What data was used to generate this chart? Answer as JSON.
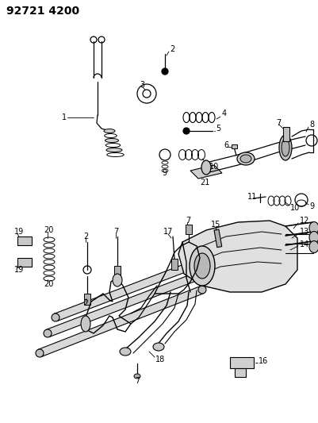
{
  "title": "92721 4200",
  "bg_color": "#ffffff",
  "lc": "#000000",
  "title_fontsize": 10,
  "label_fontsize": 7
}
